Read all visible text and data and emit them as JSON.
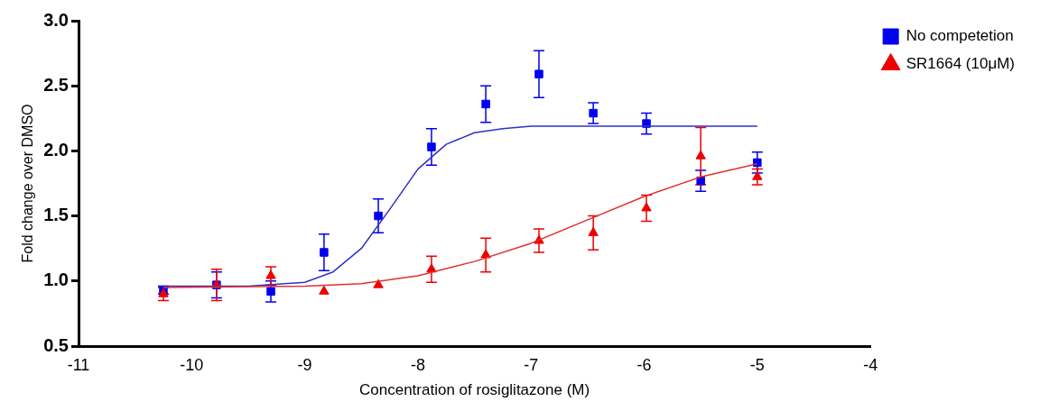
{
  "chart_data": {
    "type": "scatter",
    "xlabel": "Concentration of rosiglitazone (M)",
    "ylabel": "Fold change over DMSO",
    "xlim": [
      -11,
      -4
    ],
    "xticks": [
      -11,
      -10,
      -9,
      -8,
      -7,
      -6,
      -5,
      -4
    ],
    "ylim": [
      0.5,
      3.0
    ],
    "yticks": [
      {
        "value": 0.5,
        "label": "0.5"
      },
      {
        "value": 1,
        "label": "1.0"
      },
      {
        "value": 1.5,
        "label": "1.5"
      },
      {
        "value": 2,
        "label": "2.0"
      },
      {
        "value": 2.5,
        "label": "2.5"
      },
      {
        "value": 3,
        "label": "3.0"
      }
    ],
    "grid": false,
    "legend": "top right",
    "series": [
      {
        "name": "No competetion",
        "type": "scatter",
        "marker": "square",
        "color": "#0000ee",
        "x": [
          -10.25,
          -9.78,
          -9.3,
          -8.83,
          -8.35,
          -7.88,
          -7.4,
          -6.93,
          -6.45,
          -5.98,
          -5.5,
          -5.0
        ],
        "values": [
          0.93,
          0.97,
          0.92,
          1.22,
          1.5,
          2.03,
          2.36,
          2.59,
          2.29,
          2.21,
          1.77,
          1.91
        ],
        "errors": [
          0.03,
          0.1,
          0.08,
          0.14,
          0.13,
          0.14,
          0.14,
          0.18,
          0.08,
          0.08,
          0.08,
          0.08
        ]
      },
      {
        "name": "SR1664 (10μM)",
        "type": "scatter",
        "marker": "triangle",
        "color": "#ee0000",
        "x": [
          -10.25,
          -9.78,
          -9.3,
          -8.83,
          -8.35,
          -7.88,
          -7.4,
          -6.93,
          -6.45,
          -5.98,
          -5.5,
          -5.0
        ],
        "values": [
          0.9,
          0.97,
          1.04,
          0.92,
          0.97,
          1.09,
          1.2,
          1.31,
          1.37,
          1.56,
          1.96,
          1.8
        ],
        "errors": [
          0.05,
          0.12,
          0.07,
          null,
          null,
          0.1,
          0.13,
          0.09,
          0.13,
          0.1,
          0.22,
          0.06
        ]
      },
      {
        "type": "line",
        "marker": "none",
        "color": "#3030c8",
        "x": [
          -10.25,
          -9.5,
          -9,
          -8.75,
          -8.5,
          -8.25,
          -8,
          -7.75,
          -7.5,
          -7.25,
          -7,
          -5
        ],
        "values": [
          0.96,
          0.96,
          0.99,
          1.07,
          1.25,
          1.55,
          1.86,
          2.05,
          2.14,
          2.17,
          2.19,
          2.19
        ]
      },
      {
        "type": "line",
        "marker": "none",
        "color": "#e03030",
        "x": [
          -10.25,
          -9,
          -8.5,
          -8,
          -7.5,
          -7,
          -6.5,
          -6,
          -5.5,
          -5
        ],
        "values": [
          0.95,
          0.96,
          0.98,
          1.04,
          1.15,
          1.29,
          1.47,
          1.65,
          1.8,
          1.9
        ]
      }
    ]
  }
}
